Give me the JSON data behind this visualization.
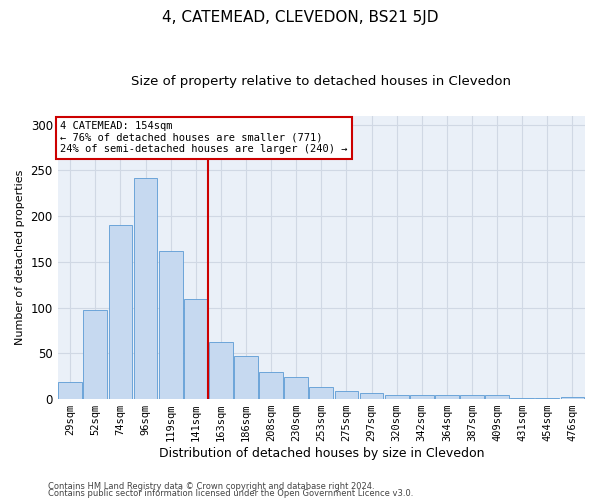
{
  "title": "4, CATEMEAD, CLEVEDON, BS21 5JD",
  "subtitle": "Size of property relative to detached houses in Clevedon",
  "xlabel": "Distribution of detached houses by size in Clevedon",
  "ylabel": "Number of detached properties",
  "categories": [
    "29sqm",
    "52sqm",
    "74sqm",
    "96sqm",
    "119sqm",
    "141sqm",
    "163sqm",
    "186sqm",
    "208sqm",
    "230sqm",
    "253sqm",
    "275sqm",
    "297sqm",
    "320sqm",
    "342sqm",
    "364sqm",
    "387sqm",
    "409sqm",
    "431sqm",
    "454sqm",
    "476sqm"
  ],
  "values": [
    19,
    97,
    190,
    242,
    162,
    109,
    62,
    47,
    30,
    24,
    13,
    9,
    7,
    4,
    4,
    4,
    4,
    4,
    1,
    1,
    2
  ],
  "bar_color": "#c6d9f0",
  "bar_edge_color": "#5b9bd5",
  "grid_color": "#d0d8e4",
  "background_color": "#eaf0f8",
  "annotation_text": "4 CATEMEAD: 154sqm\n← 76% of detached houses are smaller (771)\n24% of semi-detached houses are larger (240) →",
  "annotation_box_color": "#ffffff",
  "annotation_box_edge": "#cc0000",
  "vline_color": "#cc0000",
  "footer1": "Contains HM Land Registry data © Crown copyright and database right 2024.",
  "footer2": "Contains public sector information licensed under the Open Government Licence v3.0.",
  "ylim": [
    0,
    310
  ],
  "title_fontsize": 11,
  "subtitle_fontsize": 9.5,
  "xlabel_fontsize": 9,
  "ylabel_fontsize": 8,
  "tick_label_fontsize": 7.5,
  "annotation_fontsize": 7.5,
  "footer_fontsize": 6
}
